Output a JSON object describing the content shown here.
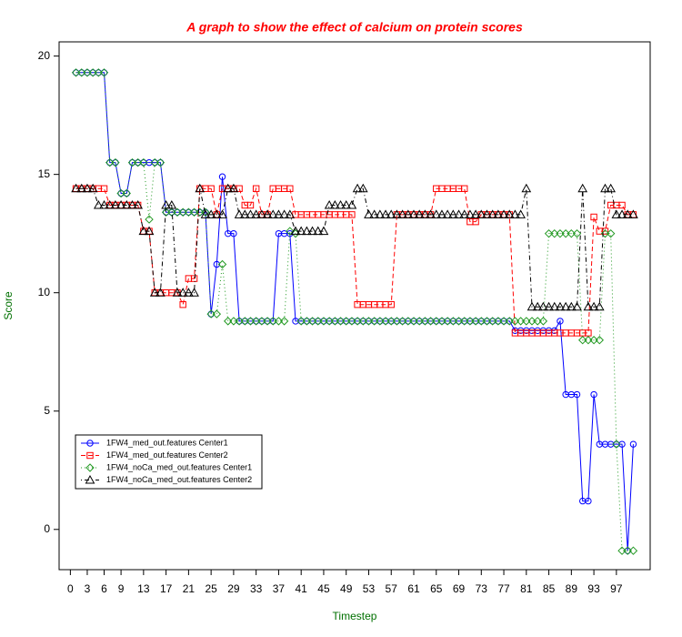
{
  "chart_data": {
    "type": "line",
    "title": "A graph to show the effect of calcium on protein scores",
    "x_label": "Timestep",
    "y_label": "Score",
    "xlim": [
      -2,
      103
    ],
    "ylim": [
      -1.7,
      20.6
    ],
    "xticks": [
      0,
      3,
      6,
      9,
      13,
      17,
      21,
      25,
      29,
      33,
      37,
      41,
      45,
      49,
      53,
      57,
      61,
      65,
      69,
      73,
      77,
      81,
      85,
      89,
      93,
      97
    ],
    "yticks": [
      0,
      5,
      10,
      15,
      20
    ],
    "legend": "bottom-left",
    "x": [
      1,
      2,
      3,
      4,
      5,
      6,
      7,
      8,
      9,
      10,
      11,
      12,
      13,
      14,
      15,
      16,
      17,
      18,
      19,
      20,
      21,
      22,
      23,
      24,
      25,
      26,
      27,
      28,
      29,
      30,
      31,
      32,
      33,
      34,
      35,
      36,
      37,
      38,
      39,
      40,
      41,
      42,
      43,
      44,
      45,
      46,
      47,
      48,
      49,
      50,
      51,
      52,
      53,
      54,
      55,
      56,
      57,
      58,
      59,
      60,
      61,
      62,
      63,
      64,
      65,
      66,
      67,
      68,
      69,
      70,
      71,
      72,
      73,
      74,
      75,
      76,
      77,
      78,
      79,
      80,
      81,
      82,
      83,
      84,
      85,
      86,
      87,
      88,
      89,
      90,
      91,
      92,
      93,
      94,
      95,
      96,
      97,
      98,
      99,
      100
    ],
    "series": [
      {
        "name": "1FW4_med_out.features Center1",
        "color": "#0000ff",
        "marker": "circle",
        "linestyle": "solid",
        "values": [
          19.3,
          19.3,
          19.3,
          19.3,
          19.3,
          19.3,
          15.5,
          15.5,
          14.2,
          14.2,
          15.5,
          15.5,
          15.5,
          15.5,
          15.5,
          15.5,
          13.4,
          13.4,
          13.4,
          13.4,
          13.4,
          13.4,
          13.4,
          13.4,
          9.1,
          11.2,
          14.9,
          12.5,
          12.5,
          8.8,
          8.8,
          8.8,
          8.8,
          8.8,
          8.8,
          8.8,
          12.5,
          12.5,
          12.5,
          8.8,
          8.8,
          8.8,
          8.8,
          8.8,
          8.8,
          8.8,
          8.8,
          8.8,
          8.8,
          8.8,
          8.8,
          8.8,
          8.8,
          8.8,
          8.8,
          8.8,
          8.8,
          8.8,
          8.8,
          8.8,
          8.8,
          8.8,
          8.8,
          8.8,
          8.8,
          8.8,
          8.8,
          8.8,
          8.8,
          8.8,
          8.8,
          8.8,
          8.8,
          8.8,
          8.8,
          8.8,
          8.8,
          8.8,
          8.4,
          8.4,
          8.4,
          8.4,
          8.4,
          8.4,
          8.4,
          8.4,
          8.8,
          5.7,
          5.7,
          5.7,
          1.2,
          1.2,
          5.7,
          3.6,
          3.6,
          3.6,
          3.6,
          3.6,
          -0.9,
          3.6
        ]
      },
      {
        "name": "1FW4_med_out.features Center2",
        "color": "#ff0000",
        "marker": "square",
        "linestyle": "dashed",
        "values": [
          14.4,
          14.4,
          14.4,
          14.4,
          14.4,
          14.4,
          13.7,
          13.7,
          13.7,
          13.7,
          13.7,
          13.7,
          12.6,
          12.6,
          10.0,
          10.0,
          10.0,
          10.0,
          10.0,
          9.5,
          10.6,
          10.6,
          14.4,
          14.4,
          14.4,
          13.3,
          14.4,
          14.4,
          14.4,
          14.4,
          13.7,
          13.7,
          14.4,
          13.3,
          13.3,
          14.4,
          14.4,
          14.4,
          14.4,
          13.3,
          13.3,
          13.3,
          13.3,
          13.3,
          13.3,
          13.3,
          13.3,
          13.3,
          13.3,
          13.3,
          9.5,
          9.5,
          9.5,
          9.5,
          9.5,
          9.5,
          9.5,
          13.3,
          13.3,
          13.3,
          13.3,
          13.3,
          13.3,
          13.3,
          14.4,
          14.4,
          14.4,
          14.4,
          14.4,
          14.4,
          13.0,
          13.0,
          13.3,
          13.3,
          13.3,
          13.3,
          13.3,
          13.3,
          8.3,
          8.3,
          8.3,
          8.3,
          8.3,
          8.3,
          8.3,
          8.3,
          8.3,
          8.3,
          8.3,
          8.3,
          8.3,
          8.3,
          13.2,
          12.6,
          12.6,
          13.7,
          13.7,
          13.7,
          13.3,
          13.3
        ]
      },
      {
        "name": "1FW4_noCa_med_out.features Center1",
        "color": "#229922",
        "marker": "diamond",
        "linestyle": "dotted",
        "values": [
          19.3,
          19.3,
          19.3,
          19.3,
          19.3,
          19.3,
          15.5,
          15.5,
          14.2,
          14.2,
          15.5,
          15.5,
          15.5,
          13.1,
          15.5,
          15.5,
          13.4,
          13.4,
          13.4,
          13.4,
          13.4,
          13.4,
          13.4,
          13.4,
          9.1,
          9.1,
          11.2,
          8.8,
          8.8,
          8.8,
          8.8,
          8.8,
          8.8,
          8.8,
          8.8,
          8.8,
          8.8,
          8.8,
          12.6,
          12.5,
          8.8,
          8.8,
          8.8,
          8.8,
          8.8,
          8.8,
          8.8,
          8.8,
          8.8,
          8.8,
          8.8,
          8.8,
          8.8,
          8.8,
          8.8,
          8.8,
          8.8,
          8.8,
          8.8,
          8.8,
          8.8,
          8.8,
          8.8,
          8.8,
          8.8,
          8.8,
          8.8,
          8.8,
          8.8,
          8.8,
          8.8,
          8.8,
          8.8,
          8.8,
          8.8,
          8.8,
          8.8,
          8.8,
          8.8,
          8.8,
          8.8,
          8.8,
          8.8,
          8.8,
          12.5,
          12.5,
          12.5,
          12.5,
          12.5,
          12.5,
          8.0,
          8.0,
          8.0,
          8.0,
          12.5,
          12.5,
          3.6,
          -0.9,
          -0.9,
          -0.9
        ]
      },
      {
        "name": "1FW4_noCa_med_out.features Center2",
        "color": "#000000",
        "marker": "triangle",
        "linestyle": "dotdash",
        "values": [
          14.4,
          14.4,
          14.4,
          14.4,
          13.7,
          13.7,
          13.7,
          13.7,
          13.7,
          13.7,
          13.7,
          13.7,
          12.6,
          12.6,
          10.0,
          10.0,
          13.7,
          13.7,
          10.0,
          10.0,
          10.0,
          10.0,
          14.4,
          13.3,
          13.3,
          13.3,
          13.3,
          14.4,
          14.4,
          13.3,
          13.3,
          13.3,
          13.3,
          13.3,
          13.3,
          13.3,
          13.3,
          13.3,
          13.3,
          12.6,
          12.6,
          12.6,
          12.6,
          12.6,
          12.6,
          13.7,
          13.7,
          13.7,
          13.7,
          13.7,
          14.4,
          14.4,
          13.3,
          13.3,
          13.3,
          13.3,
          13.3,
          13.3,
          13.3,
          13.3,
          13.3,
          13.3,
          13.3,
          13.3,
          13.3,
          13.3,
          13.3,
          13.3,
          13.3,
          13.3,
          13.3,
          13.3,
          13.3,
          13.3,
          13.3,
          13.3,
          13.3,
          13.3,
          13.3,
          13.3,
          14.4,
          9.4,
          9.4,
          9.4,
          9.4,
          9.4,
          9.4,
          9.4,
          9.4,
          9.4,
          14.4,
          9.4,
          9.4,
          9.4,
          14.4,
          14.4,
          13.3,
          13.3,
          13.3,
          13.3
        ]
      }
    ]
  }
}
